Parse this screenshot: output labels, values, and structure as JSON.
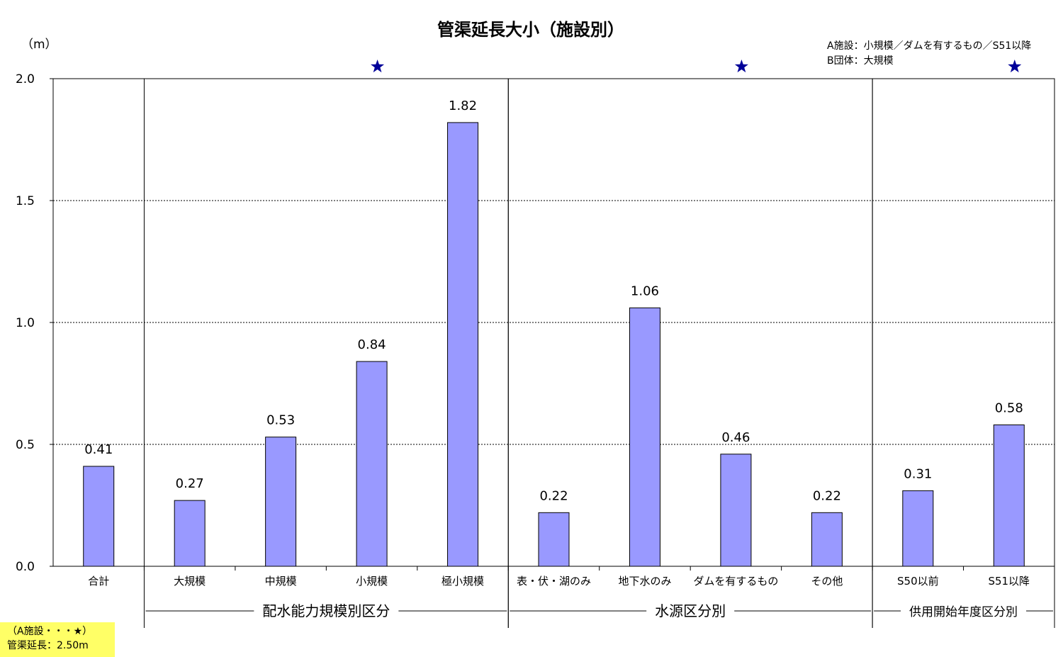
{
  "chart_data": {
    "type": "bar",
    "title": "管渠延長大小（施設別）",
    "ylabel": "（m）",
    "ylim": [
      0,
      2.0
    ],
    "yticks": [
      "0.0",
      "0.5",
      "1.0",
      "1.5",
      "2.0"
    ],
    "grid": true,
    "categories": [
      "合計",
      "大規模",
      "中規模",
      "小規模",
      "極小規模",
      "表・伏・湖のみ",
      "地下水のみ",
      "ダムを有するもの",
      "その他",
      "S50以前",
      "S51以降"
    ],
    "values": [
      0.41,
      0.27,
      0.53,
      0.84,
      1.82,
      0.22,
      1.06,
      0.46,
      0.22,
      0.31,
      0.58
    ],
    "value_labels": [
      "0.41",
      "0.27",
      "0.53",
      "0.84",
      "1.82",
      "0.22",
      "1.06",
      "0.46",
      "0.22",
      "0.31",
      "0.58"
    ],
    "groups": [
      {
        "label": "配水能力規模別区分",
        "categories": [
          "大規模",
          "中規模",
          "小規模",
          "極小規模"
        ]
      },
      {
        "label": "水源区分別",
        "categories": [
          "表・伏・湖のみ",
          "地下水のみ",
          "ダムを有するもの",
          "その他"
        ]
      },
      {
        "label": "供用開始年度区分別",
        "categories": [
          "S50以前",
          "S51以降"
        ]
      }
    ],
    "star_markers": [
      "小規模",
      "ダムを有するもの",
      "S51以降"
    ],
    "legend_notes": [
      "A施設：小規模／ダムを有するもの／S51以降",
      "B団体：大規模"
    ],
    "footnote": [
      "（A施設・・・★）",
      "管渠延長：2.50m"
    ],
    "colors": {
      "bar": "#9999ff",
      "star": "#000099"
    }
  }
}
